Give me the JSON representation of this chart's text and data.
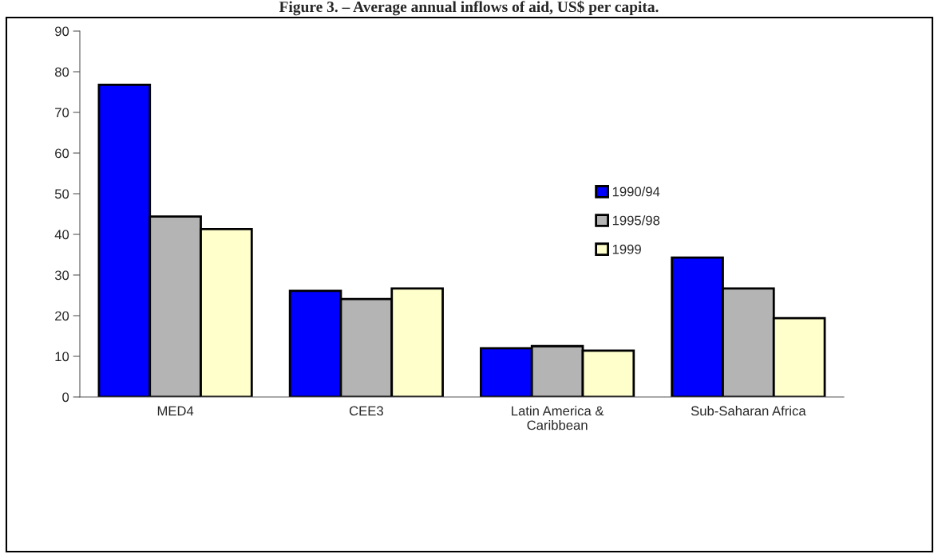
{
  "chart_data": {
    "type": "bar",
    "title": "Figure 3. – Average annual inflows of aid, US$ per capita.",
    "categories": [
      "MED4",
      "CEE3",
      "Latin America &\nCaribbean",
      "Sub-Saharan Africa"
    ],
    "series": [
      {
        "name": "1990/94",
        "color": "#0000ff",
        "values": [
          76.8,
          26.1,
          12.0,
          34.3
        ]
      },
      {
        "name": "1995/98",
        "color": "#b4b4b4",
        "values": [
          44.4,
          24.1,
          12.5,
          26.7
        ]
      },
      {
        "name": "1999",
        "color": "#ffffcc",
        "values": [
          41.3,
          26.7,
          11.4,
          19.4
        ]
      }
    ],
    "ylim": [
      0,
      90
    ],
    "yticks": [
      0,
      10,
      20,
      30,
      40,
      50,
      60,
      70,
      80,
      90
    ],
    "grid": false,
    "legend": "center"
  }
}
